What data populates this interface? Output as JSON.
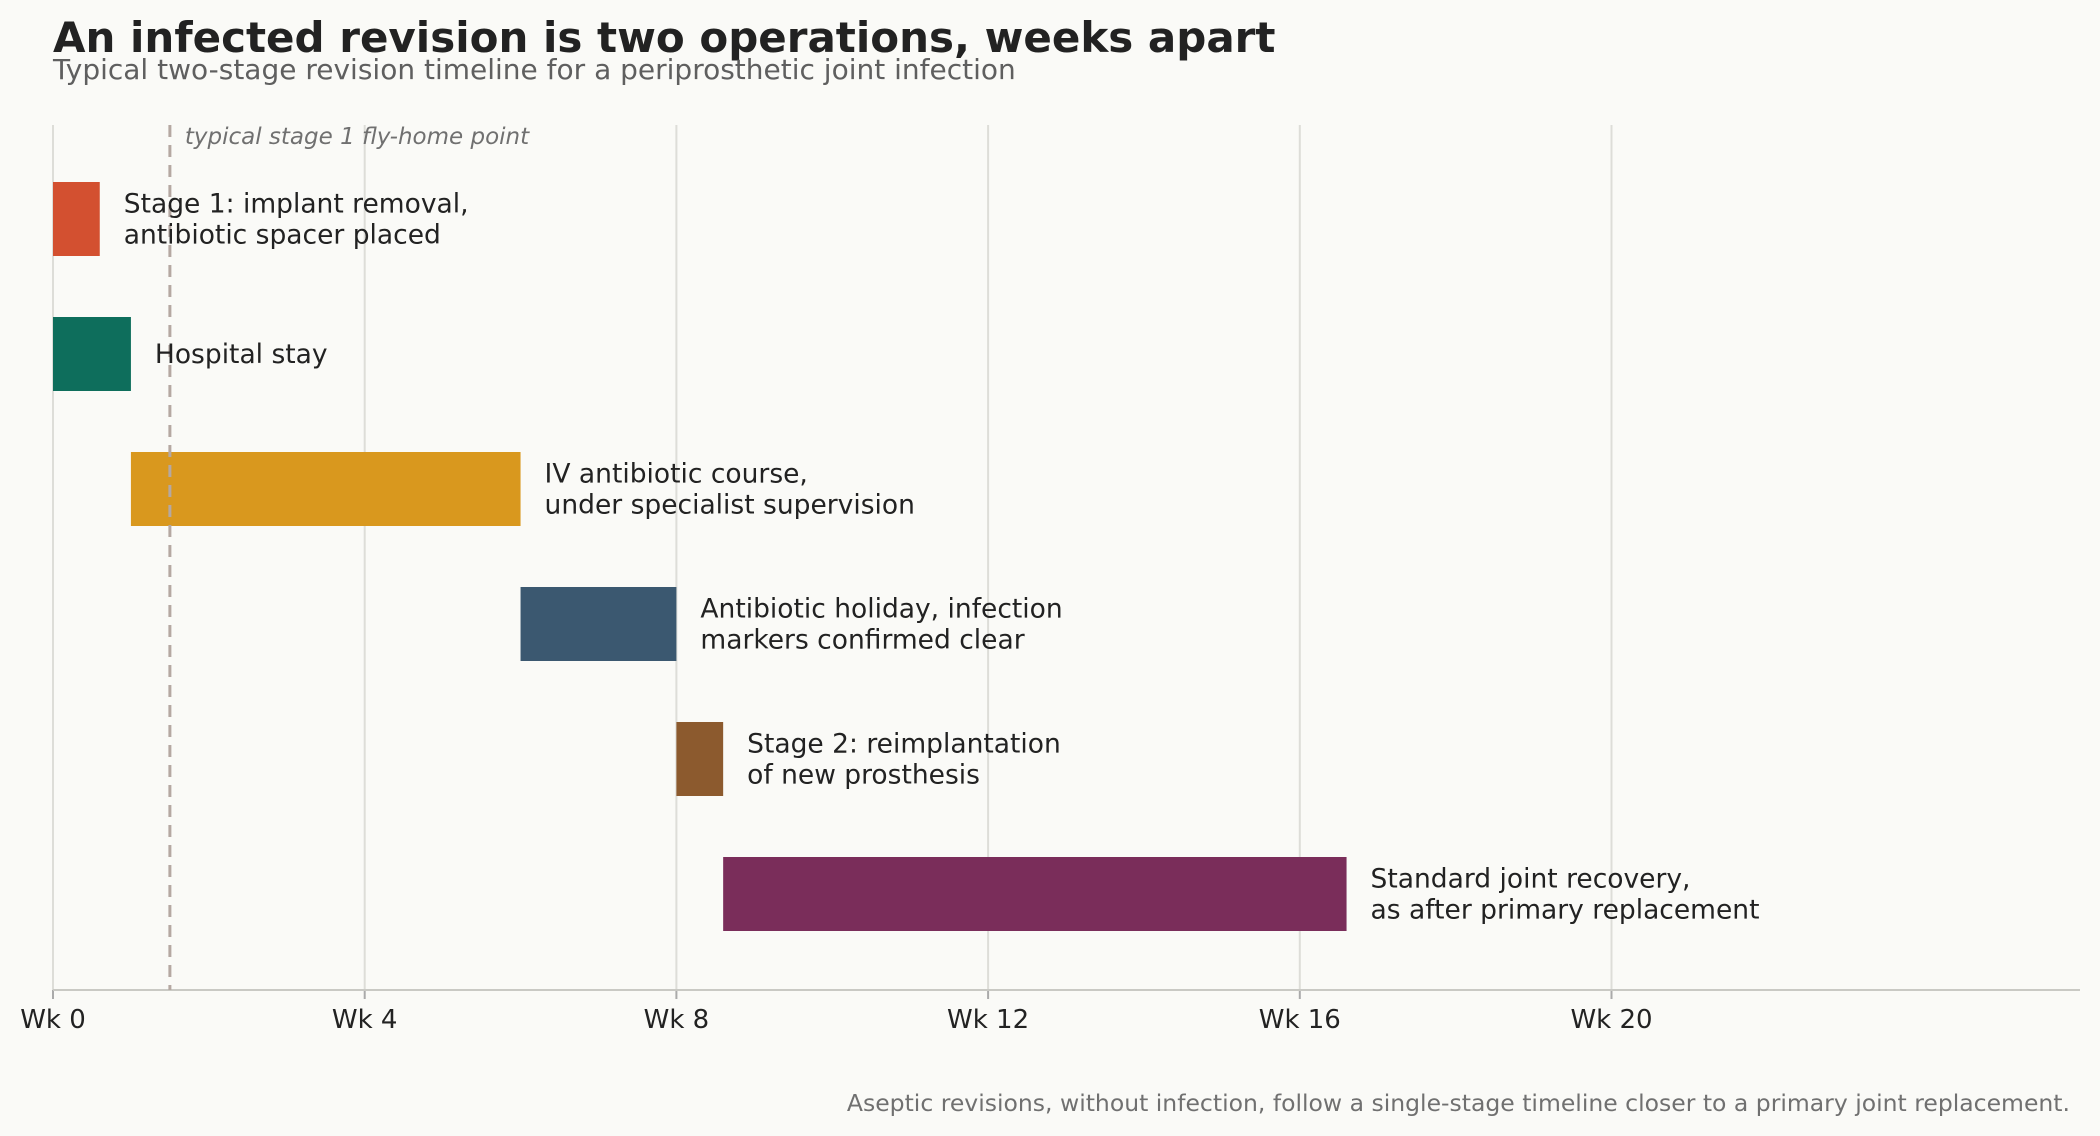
{
  "chart_data": {
    "type": "bar",
    "orientation": "horizontal-timeline",
    "title": "An infected revision is two operations, weeks apart",
    "subtitle": "Typical two-stage revision timeline for a periprosthetic joint infection",
    "xlabel": "",
    "ylabel": "",
    "xlim": [
      0,
      26
    ],
    "grid": true,
    "legend": "none",
    "ticks": [
      {
        "value": 0,
        "label": "Wk 0"
      },
      {
        "value": 4,
        "label": "Wk 4"
      },
      {
        "value": 8,
        "label": "Wk 8"
      },
      {
        "value": 12,
        "label": "Wk 12"
      },
      {
        "value": 16,
        "label": "Wk 16"
      },
      {
        "value": 20,
        "label": "Wk 20"
      }
    ],
    "phases": [
      {
        "label_lines": [
          "Stage 1: implant removal,",
          "antibiotic spacer placed"
        ],
        "start": 0,
        "end": 0.6,
        "color": "#D35030"
      },
      {
        "label_lines": [
          "Hospital stay"
        ],
        "start": 0,
        "end": 1.0,
        "color": "#0E6E5C"
      },
      {
        "label_lines": [
          "IV antibiotic course,",
          "under specialist supervision"
        ],
        "start": 1.0,
        "end": 6.0,
        "color": "#D9981E"
      },
      {
        "label_lines": [
          "Antibiotic holiday, infection",
          "markers confirmed clear"
        ],
        "start": 6.0,
        "end": 8.0,
        "color": "#3B5870"
      },
      {
        "label_lines": [
          "Stage 2: reimplantation",
          "of new prosthesis"
        ],
        "start": 8.0,
        "end": 8.6,
        "color": "#8C5A2E"
      },
      {
        "label_lines": [
          "Standard joint recovery,",
          "as after primary replacement"
        ],
        "start": 8.6,
        "end": 16.6,
        "color": "#7A2D5A"
      }
    ],
    "reference_line": {
      "value": 1.5,
      "label": "typical stage 1 fly-home point",
      "color": "#B5A8A2"
    },
    "note": "Aseptic revisions, without infection, follow a single-stage timeline closer to a primary joint replacement."
  }
}
